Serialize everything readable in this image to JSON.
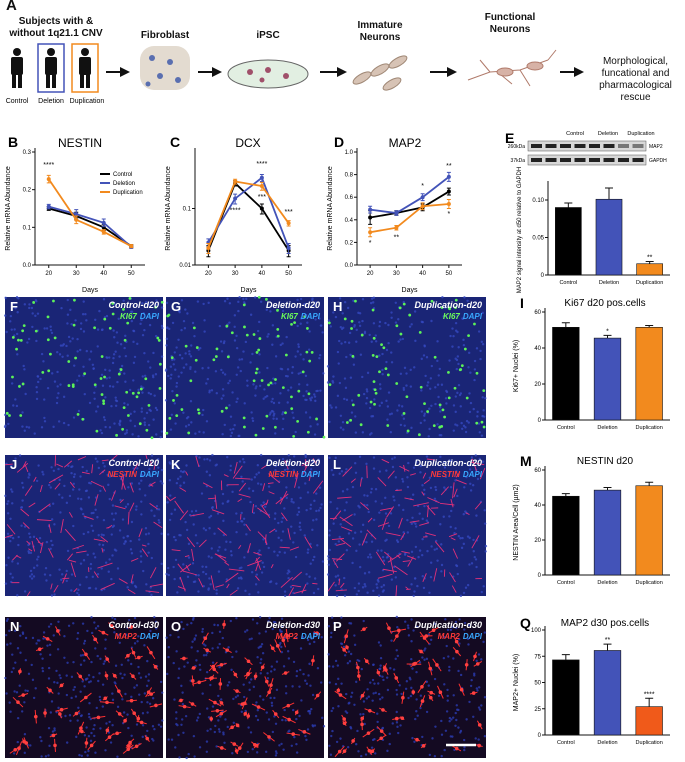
{
  "figure": {
    "panel_a": {
      "letter": "A",
      "subjects": "Subjects with & without 1q21.1 CNV",
      "groups": [
        "Control",
        "Deletion",
        "Duplication"
      ],
      "stages": [
        "Fibroblast",
        "iPSC",
        "Immature Neurons",
        "Functional Neurons"
      ],
      "outcome": "Morphological, funcational and pharmacological rescue"
    },
    "images": [
      {
        "letter": "F",
        "label": "Control-d20",
        "marker": "KI67",
        "stain": "DAPI"
      },
      {
        "letter": "G",
        "label": "Deletion-d20",
        "marker": "KI67",
        "stain": "DAPI"
      },
      {
        "letter": "H",
        "label": "Duplication-d20",
        "marker": "KI67",
        "stain": "DAPI"
      },
      {
        "letter": "J",
        "label": "Control-d20",
        "marker": "NESTIN",
        "stain": "DAPI"
      },
      {
        "letter": "K",
        "label": "Deletion-d20",
        "marker": "NESTIN",
        "stain": "DAPI"
      },
      {
        "letter": "L",
        "label": "Duplication-d20",
        "marker": "NESTIN",
        "stain": "DAPI"
      },
      {
        "letter": "N",
        "label": "Control-d30",
        "marker": "MAP2",
        "stain": "DAPI"
      },
      {
        "letter": "O",
        "label": "Deletion-d30",
        "marker": "MAP2",
        "stain": "DAPI"
      },
      {
        "letter": "P",
        "label": "Duplication-d30",
        "marker": "MAP2",
        "stain": "DAPI"
      }
    ]
  },
  "chart_data": [
    {
      "type": "line",
      "panel": "B",
      "title": "NESTIN",
      "xlabel": "Days",
      "ylabel": "Relative mRNA Abundance",
      "x": [
        20,
        30,
        40,
        50
      ],
      "xlim": [
        15,
        55
      ],
      "xticks": [
        20,
        30,
        40,
        50
      ],
      "ylim": [
        0,
        0.3
      ],
      "yticks": [
        {
          "value": 0,
          "label": "0.0"
        },
        {
          "value": 0.1,
          "label": "0.1"
        },
        {
          "value": 0.2,
          "label": "0.2"
        },
        {
          "value": 0.3,
          "label": "0.3"
        }
      ],
      "legend": "upper right",
      "series": [
        {
          "name": "Control",
          "color": "#000000",
          "values": [
            0.15,
            0.13,
            0.1,
            0.05
          ],
          "errors": [
            0.005,
            0.01,
            0.008,
            0.004
          ]
        },
        {
          "name": "Deletion",
          "color": "#4353b8",
          "values": [
            0.155,
            0.135,
            0.112,
            0.048
          ],
          "errors": [
            0.006,
            0.012,
            0.01,
            0.004
          ]
        },
        {
          "name": "Duplication",
          "color": "#f28a1e",
          "values": [
            0.228,
            0.12,
            0.088,
            0.05
          ],
          "errors": [
            0.01,
            0.01,
            0.006,
            0.004
          ]
        }
      ],
      "annotations": [
        "****"
      ]
    },
    {
      "type": "line",
      "panel": "C",
      "title": "DCX",
      "xlabel": "Days",
      "ylabel": "Relative mRNA Abundance",
      "log_scale": true,
      "x": [
        20,
        30,
        40,
        50
      ],
      "xlim": [
        15,
        55
      ],
      "xticks": [
        20,
        30,
        40,
        50
      ],
      "ylim": [
        0.01,
        1
      ],
      "yticks": [
        0.01,
        0.1
      ],
      "series": [
        {
          "name": "Control",
          "color": "#000000",
          "values": [
            0.018,
            0.28,
            0.1,
            0.018
          ],
          "errors": [
            0.004,
            0.03,
            0.02,
            0.004
          ]
        },
        {
          "name": "Deletion",
          "color": "#4353b8",
          "values": [
            0.025,
            0.15,
            0.35,
            0.02
          ],
          "errors": [
            0.004,
            0.03,
            0.05,
            0.004
          ]
        },
        {
          "name": "Duplication",
          "color": "#f28a1e",
          "values": [
            0.02,
            0.3,
            0.25,
            0.055
          ],
          "errors": [
            0.004,
            0.03,
            0.04,
            0.006
          ]
        }
      ],
      "annotations": [
        "****",
        "****",
        "***",
        "***"
      ]
    },
    {
      "type": "line",
      "panel": "D",
      "title": "MAP2",
      "xlabel": "Days",
      "ylabel": "Relative mRNA Abundance",
      "x": [
        20,
        30,
        40,
        50
      ],
      "xlim": [
        15,
        55
      ],
      "xticks": [
        20,
        30,
        40,
        50
      ],
      "ylim": [
        0,
        1
      ],
      "yticks": [
        {
          "value": 0,
          "label": "0.0"
        },
        {
          "value": 0.2,
          "label": "0.2"
        },
        {
          "value": 0.4,
          "label": "0.4"
        },
        {
          "value": 0.6,
          "label": "0.6"
        },
        {
          "value": 0.8,
          "label": "0.8"
        },
        {
          "value": 1,
          "label": "1.0"
        }
      ],
      "series": [
        {
          "name": "Control",
          "color": "#000000",
          "values": [
            0.42,
            0.46,
            0.51,
            0.65
          ],
          "errors": [
            0.06,
            0.02,
            0.03,
            0.03
          ]
        },
        {
          "name": "Deletion",
          "color": "#4353b8",
          "values": [
            0.49,
            0.46,
            0.6,
            0.78
          ],
          "errors": [
            0.03,
            0.02,
            0.03,
            0.04
          ]
        },
        {
          "name": "Duplication",
          "color": "#f28a1e",
          "values": [
            0.29,
            0.33,
            0.52,
            0.54
          ],
          "errors": [
            0.04,
            0.02,
            0.03,
            0.04
          ]
        }
      ],
      "annotations": [
        "*",
        "**",
        "*",
        "**",
        "*"
      ]
    },
    {
      "type": "bar",
      "panel": "E",
      "ylabel": "MAP2 signal intensity at d50 relative to GAPDH",
      "categories": [
        "Control",
        "Deletion",
        "Duplication"
      ],
      "values": [
        0.09,
        0.101,
        0.015
      ],
      "errors": [
        0.006,
        0.015,
        0.003
      ],
      "colors": [
        "#000000",
        "#4353b8",
        "#f28a1e"
      ],
      "ylim": [
        0,
        0.12
      ],
      "yticks": [
        0,
        0.05,
        {
          "value": 0.1,
          "label": "0.10"
        }
      ],
      "annotations": [
        "**"
      ],
      "blot": {
        "markers": [
          "260kDa",
          "37kDa"
        ],
        "proteins": [
          "MAP2",
          "GAPDH"
        ],
        "lanes": [
          "Control",
          "Deletion",
          "Duplication"
        ]
      }
    },
    {
      "type": "bar",
      "panel": "I",
      "title": "Ki67 d20 pos.cells",
      "ylabel": "Ki67+ Nuclei (%)",
      "categories": [
        "Control",
        "Deletion",
        "Duplication"
      ],
      "values": [
        51.5,
        45.5,
        51.5
      ],
      "errors": [
        2.5,
        1.5,
        1
      ],
      "colors": [
        "#000000",
        "#4353b8",
        "#f28a1e"
      ],
      "ylim": [
        0,
        60
      ],
      "yticks": [
        0,
        20,
        40,
        60
      ],
      "annotations": [
        "*"
      ]
    },
    {
      "type": "bar",
      "panel": "M",
      "title": "NESTIN  d20",
      "ylabel": "NESTIN Area/Cell (µm2)",
      "categories": [
        "Control",
        "Deletion",
        "Duplication"
      ],
      "values": [
        45,
        48.5,
        51
      ],
      "errors": [
        1.5,
        1.5,
        2
      ],
      "colors": [
        "#000000",
        "#4353b8",
        "#f28a1e"
      ],
      "ylim": [
        0,
        60
      ],
      "yticks": [
        0,
        20,
        40,
        60
      ],
      "annotations": []
    },
    {
      "type": "bar",
      "panel": "Q",
      "title": "MAP2 d30 pos.cells",
      "ylabel": "MAP2+ Nuclei (%)",
      "categories": [
        "Control",
        "Deletion",
        "Duplication"
      ],
      "values": [
        71.5,
        80.5,
        27
      ],
      "errors": [
        5,
        6,
        8
      ],
      "colors": [
        "#000000",
        "#4353b8",
        "#f05a1a"
      ],
      "ylim": [
        0,
        100
      ],
      "yticks": [
        0,
        25,
        50,
        75,
        100
      ],
      "annotations": [
        "**",
        "****"
      ]
    }
  ]
}
